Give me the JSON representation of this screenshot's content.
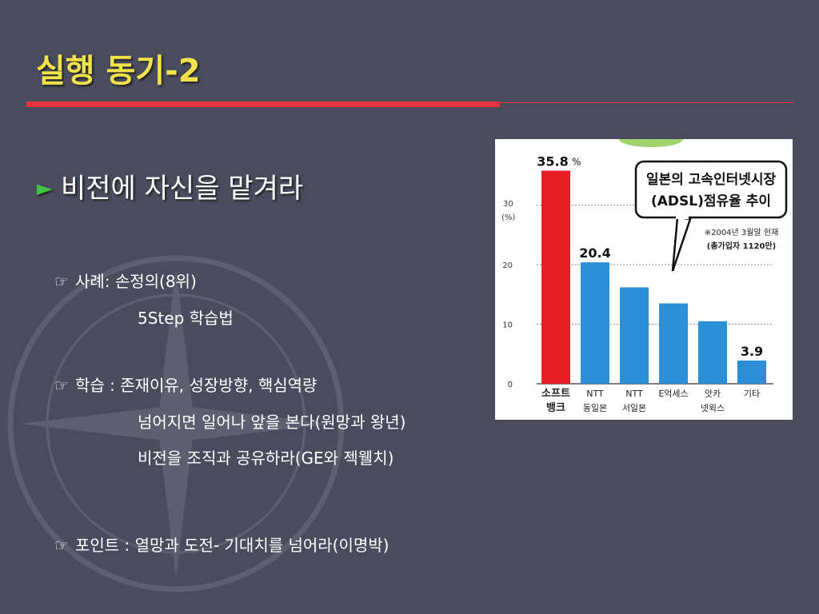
{
  "slide": {
    "title": "실행  동기-2",
    "main_bullet": "비전에 자신을 맡겨라",
    "items": [
      {
        "icon": "pointing-hand-icon",
        "lines": [
          "사례: 손정의(8위)",
          "5Step 학습법"
        ]
      },
      {
        "icon": "pointing-hand-icon",
        "lines": [
          "학습 : 존재이유, 성장방향, 핵심역량",
          "넘어지면 일어나 앞을 본다(원망과 왕년)",
          "비전을 조직과 공유하라(GE와 젝웰치)"
        ]
      },
      {
        "icon": "pointing-hand-icon",
        "lines": [
          "포인트 : 열망과 도전-  기대치를 넘어라(이명박)"
        ]
      }
    ],
    "colors": {
      "background": "#4a4c5e",
      "title": "#f0e24a",
      "rule": "#e8343e",
      "arrow": "#3fc43f"
    }
  },
  "chart_data": {
    "type": "bar",
    "title_line1": "일본의 고속인터넷시장",
    "title_line2": "(ADSL)점유율 추이",
    "note_line1": "※2004년 3월말 현재",
    "note_line2": "(총가입자 1120만)",
    "ylabel_value": "30",
    "ylabel_unit": "(%)",
    "yticks": [
      0,
      10,
      20,
      30
    ],
    "ylim": [
      0,
      36
    ],
    "categories": [
      {
        "line1": "소프트",
        "line2": "뱅크"
      },
      {
        "line1": "NTT",
        "line2": "동일본"
      },
      {
        "line1": "NTT",
        "line2": "서일본"
      },
      {
        "line1": "E억세스",
        "line2": ""
      },
      {
        "line1": "앗카",
        "line2": "넷윅스"
      },
      {
        "line1": "기타",
        "line2": ""
      }
    ],
    "values": [
      35.8,
      20.4,
      16.2,
      13.5,
      10.5,
      3.9
    ],
    "labels": [
      "35.8",
      "20.4",
      "",
      "",
      "",
      "3.9"
    ],
    "first_label_unit": "%",
    "bar_colors": [
      "#e81e25",
      "#2b8fd6",
      "#2b8fd6",
      "#2b8fd6",
      "#2b8fd6",
      "#2b8fd6"
    ]
  }
}
